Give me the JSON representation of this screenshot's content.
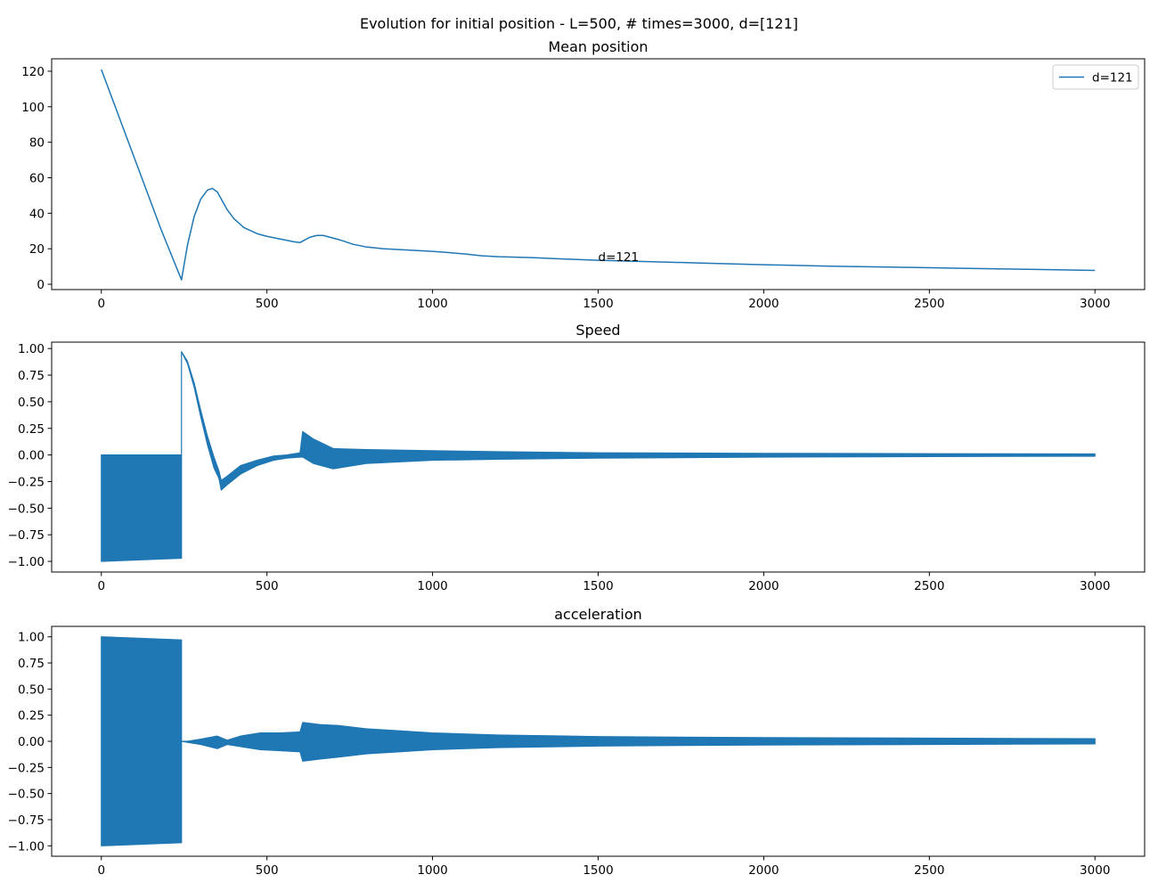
{
  "suptitle": "Evolution for initial position - L=500, # times=3000, d=[121]",
  "chart_data": [
    {
      "type": "line",
      "title": "Mean position",
      "xlabel": "",
      "ylabel": "",
      "xlim": [
        -150,
        3150
      ],
      "ylim": [
        -3,
        127
      ],
      "xticks": [
        0,
        500,
        1000,
        1500,
        2000,
        2500,
        3000
      ],
      "yticks": [
        0,
        20,
        40,
        60,
        80,
        100,
        120
      ],
      "color": "#1f77b4",
      "legend": {
        "position": "top-right",
        "entries": [
          "d=121"
        ]
      },
      "annotation": {
        "text": "d=121",
        "x": 1500,
        "y": 13
      },
      "series": [
        {
          "name": "d=121",
          "x": [
            0,
            60,
            120,
            180,
            242,
            260,
            280,
            300,
            320,
            335,
            350,
            365,
            380,
            400,
            430,
            470,
            500,
            540,
            580,
            600,
            615,
            630,
            650,
            670,
            690,
            720,
            760,
            800,
            850,
            900,
            950,
            1000,
            1050,
            1100,
            1150,
            1200,
            1300,
            1400,
            1500,
            1600,
            1700,
            1800,
            1900,
            2000,
            2200,
            2400,
            2600,
            2800,
            3000
          ],
          "y": [
            121,
            91,
            61,
            31,
            2.5,
            22,
            38,
            48,
            53,
            54,
            52,
            47,
            42,
            37,
            32,
            28.5,
            27,
            25.5,
            24,
            23.5,
            25,
            26.5,
            27.5,
            27.5,
            26.5,
            25,
            22.5,
            21,
            20,
            19.5,
            19,
            18.5,
            17.8,
            17,
            16,
            15.5,
            15,
            14.2,
            13.5,
            13,
            12.5,
            12,
            11.5,
            11,
            10.2,
            9.6,
            9,
            8.4,
            7.8
          ]
        }
      ]
    },
    {
      "type": "line",
      "title": "Speed",
      "xlabel": "",
      "ylabel": "",
      "xlim": [
        -150,
        3150
      ],
      "ylim": [
        -1.1,
        1.06
      ],
      "xticks": [
        0,
        500,
        1000,
        1500,
        2000,
        2500,
        3000
      ],
      "yticks": [
        -1.0,
        -0.75,
        -0.5,
        -0.25,
        0.0,
        0.25,
        0.5,
        0.75,
        1.0
      ],
      "yticklabels": [
        "−1.00",
        "−0.75",
        "−0.50",
        "−0.25",
        "0.00",
        "0.25",
        "0.50",
        "0.75",
        "1.00"
      ],
      "color": "#1f77b4",
      "series": [
        {
          "x": [
            0,
            242,
            242,
            260,
            280,
            300,
            320,
            340,
            355,
            362,
            380,
            420,
            470,
            520,
            560,
            600,
            608,
            640,
            700,
            800,
            1000,
            1200,
            1500,
            2000,
            2500,
            3000
          ],
          "upper": [
            0,
            0,
            0.97,
            0.88,
            0.68,
            0.42,
            0.18,
            -0.02,
            -0.15,
            -0.24,
            -0.2,
            -0.1,
            -0.05,
            -0.01,
            0.0,
            0.02,
            0.22,
            0.15,
            0.06,
            0.05,
            0.04,
            0.03,
            0.02,
            0.015,
            0.012,
            0.01
          ],
          "lower": [
            -1.0,
            -0.97,
            0.97,
            0.86,
            0.64,
            0.36,
            0.1,
            -0.12,
            -0.22,
            -0.33,
            -0.28,
            -0.18,
            -0.1,
            -0.05,
            -0.03,
            -0.02,
            -0.02,
            -0.08,
            -0.13,
            -0.08,
            -0.05,
            -0.04,
            -0.03,
            -0.02,
            -0.015,
            -0.012
          ]
        }
      ]
    },
    {
      "type": "line",
      "title": "acceleration",
      "xlabel": "",
      "ylabel": "",
      "xlim": [
        -150,
        3150
      ],
      "ylim": [
        -1.1,
        1.1
      ],
      "xticks": [
        0,
        500,
        1000,
        1500,
        2000,
        2500,
        3000
      ],
      "yticks": [
        -1.0,
        -0.75,
        -0.5,
        -0.25,
        0.0,
        0.25,
        0.5,
        0.75,
        1.0
      ],
      "yticklabels": [
        "−1.00",
        "−0.75",
        "−0.50",
        "−0.25",
        "0.00",
        "0.25",
        "0.50",
        "0.75",
        "1.00"
      ],
      "color": "#1f77b4",
      "series": [
        {
          "x": [
            0,
            242,
            242,
            260,
            300,
            350,
            380,
            420,
            480,
            540,
            600,
            608,
            660,
            720,
            800,
            900,
            1000,
            1200,
            1500,
            2000,
            2500,
            3000
          ],
          "upper": [
            1.0,
            0.97,
            0.0,
            0.0,
            0.02,
            0.05,
            0.01,
            0.05,
            0.08,
            0.08,
            0.09,
            0.18,
            0.16,
            0.15,
            0.12,
            0.1,
            0.08,
            0.06,
            0.045,
            0.035,
            0.03,
            0.025
          ],
          "lower": [
            -1.0,
            -0.97,
            0.0,
            -0.01,
            -0.03,
            -0.07,
            -0.03,
            -0.05,
            -0.08,
            -0.09,
            -0.1,
            -0.19,
            -0.17,
            -0.15,
            -0.12,
            -0.1,
            -0.08,
            -0.06,
            -0.045,
            -0.035,
            -0.03,
            -0.025
          ]
        }
      ]
    }
  ]
}
